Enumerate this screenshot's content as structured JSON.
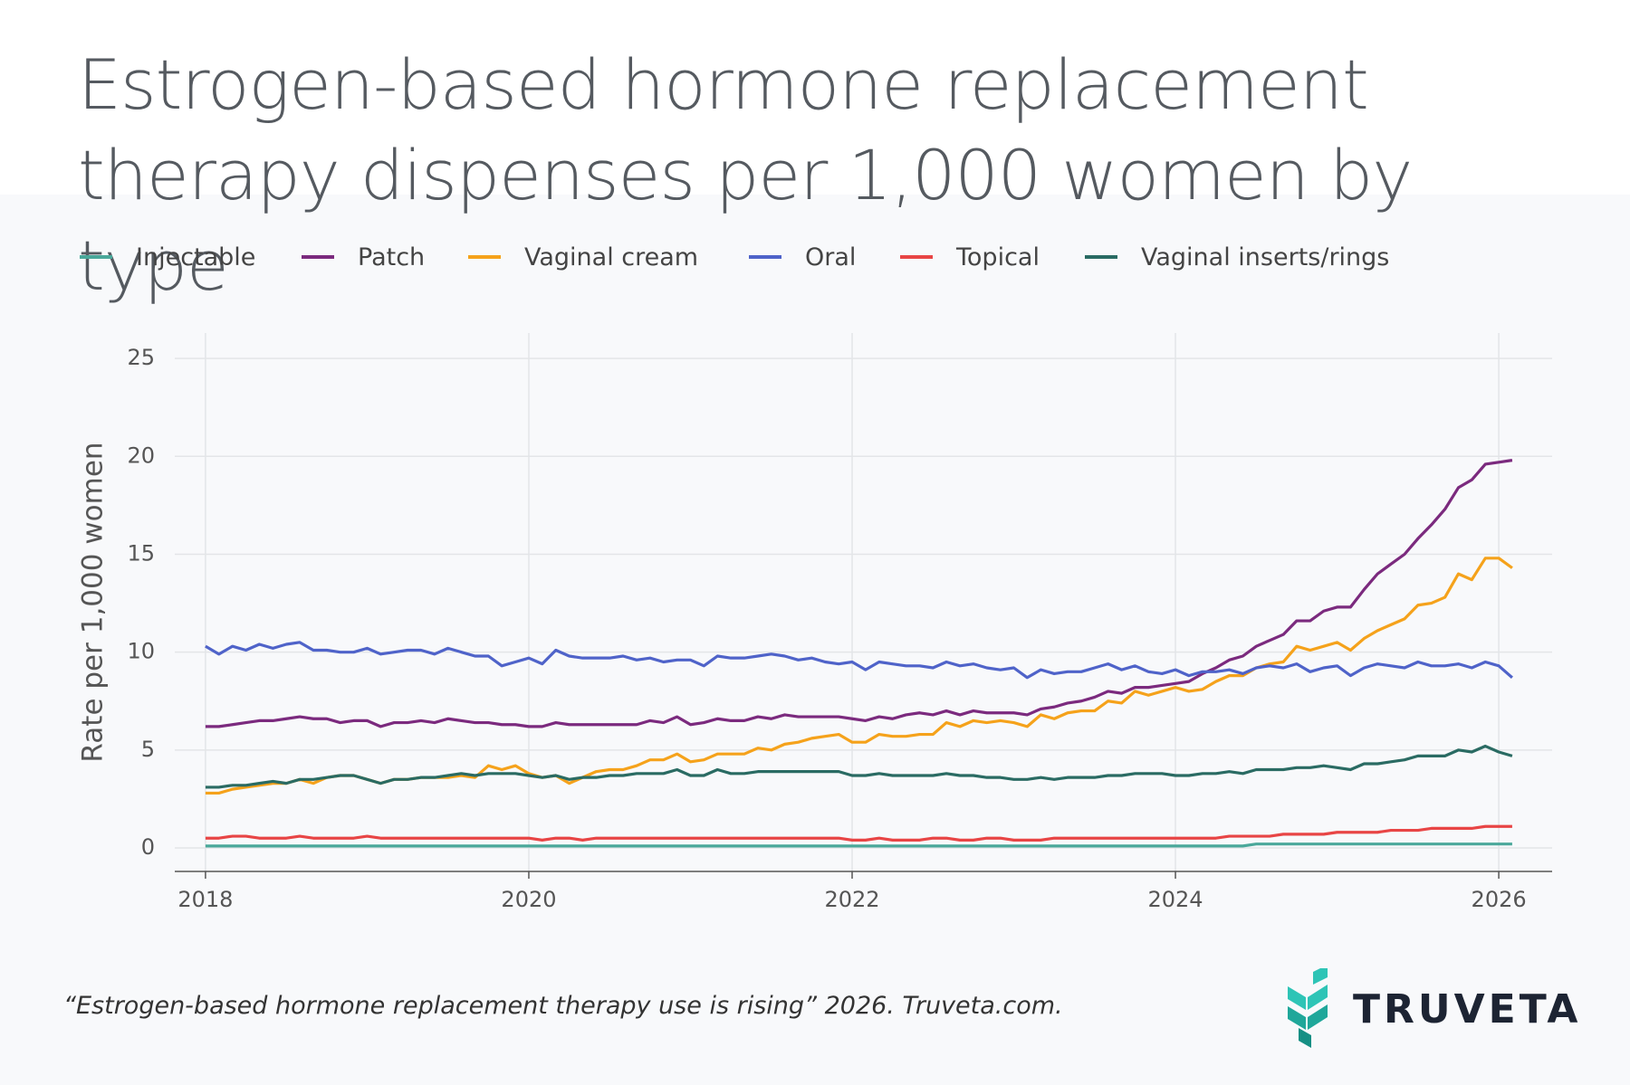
{
  "chart_data": {
    "type": "line",
    "title": "Estrogen-based hormone replacement therapy dispenses per 1,000 women by type",
    "y_label": "Rate per 1,000 women",
    "source": "“Estrogen-based hormone replacement therapy use is rising” 2026. Truveta.com.",
    "logo_text": "TRUVETA",
    "xlim": [
      2017.81,
      2026.33
    ],
    "xticks": [
      2018,
      2020,
      2022,
      2024,
      2026
    ],
    "ylim": [
      -1.2,
      26.3
    ],
    "yticks": [
      0,
      5,
      10,
      15,
      20,
      25
    ],
    "grid": true,
    "x": [
      2018,
      2018.083,
      2018.167,
      2018.25,
      2018.333,
      2018.417,
      2018.5,
      2018.583,
      2018.667,
      2018.75,
      2018.833,
      2018.917,
      2019,
      2019.083,
      2019.167,
      2019.25,
      2019.333,
      2019.417,
      2019.5,
      2019.583,
      2019.667,
      2019.75,
      2019.833,
      2019.917,
      2020,
      2020.083,
      2020.167,
      2020.25,
      2020.333,
      2020.417,
      2020.5,
      2020.583,
      2020.667,
      2020.75,
      2020.833,
      2020.917,
      2021,
      2021.083,
      2021.167,
      2021.25,
      2021.333,
      2021.417,
      2021.5,
      2021.583,
      2021.667,
      2021.75,
      2021.833,
      2021.917,
      2022,
      2022.083,
      2022.167,
      2022.25,
      2022.333,
      2022.417,
      2022.5,
      2022.583,
      2022.667,
      2022.75,
      2022.833,
      2022.917,
      2023,
      2023.083,
      2023.167,
      2023.25,
      2023.333,
      2023.417,
      2023.5,
      2023.583,
      2023.667,
      2023.75,
      2023.833,
      2023.917,
      2024,
      2024.083,
      2024.167,
      2024.25,
      2024.333,
      2024.417,
      2024.5,
      2024.583,
      2024.667,
      2024.75,
      2024.833,
      2024.917,
      2025,
      2025.083,
      2025.167,
      2025.25,
      2025.333,
      2025.417,
      2025.5,
      2025.583,
      2025.667,
      2025.75,
      2025.833,
      2025.917,
      2026,
      2026.083
    ],
    "series": [
      {
        "name": "Injectable",
        "color": "#4aa89a",
        "values": [
          0.1,
          0.1,
          0.1,
          0.1,
          0.1,
          0.1,
          0.1,
          0.1,
          0.1,
          0.1,
          0.1,
          0.1,
          0.1,
          0.1,
          0.1,
          0.1,
          0.1,
          0.1,
          0.1,
          0.1,
          0.1,
          0.1,
          0.1,
          0.1,
          0.1,
          0.1,
          0.1,
          0.1,
          0.1,
          0.1,
          0.1,
          0.1,
          0.1,
          0.1,
          0.1,
          0.1,
          0.1,
          0.1,
          0.1,
          0.1,
          0.1,
          0.1,
          0.1,
          0.1,
          0.1,
          0.1,
          0.1,
          0.1,
          0.1,
          0.1,
          0.1,
          0.1,
          0.1,
          0.1,
          0.1,
          0.1,
          0.1,
          0.1,
          0.1,
          0.1,
          0.1,
          0.1,
          0.1,
          0.1,
          0.1,
          0.1,
          0.1,
          0.1,
          0.1,
          0.1,
          0.1,
          0.1,
          0.1,
          0.1,
          0.1,
          0.1,
          0.1,
          0.1,
          0.2,
          0.2,
          0.2,
          0.2,
          0.2,
          0.2,
          0.2,
          0.2,
          0.2,
          0.2,
          0.2,
          0.2,
          0.2,
          0.2,
          0.2,
          0.2,
          0.2,
          0.2,
          0.2,
          0.2
        ]
      },
      {
        "name": "Patch",
        "color": "#7b2a7e",
        "values": [
          6.2,
          6.2,
          6.3,
          6.4,
          6.5,
          6.5,
          6.6,
          6.7,
          6.6,
          6.6,
          6.4,
          6.5,
          6.5,
          6.2,
          6.4,
          6.4,
          6.5,
          6.4,
          6.6,
          6.5,
          6.4,
          6.4,
          6.3,
          6.3,
          6.2,
          6.2,
          6.4,
          6.3,
          6.3,
          6.3,
          6.3,
          6.3,
          6.3,
          6.5,
          6.4,
          6.7,
          6.3,
          6.4,
          6.6,
          6.5,
          6.5,
          6.7,
          6.6,
          6.8,
          6.7,
          6.7,
          6.7,
          6.7,
          6.6,
          6.5,
          6.7,
          6.6,
          6.8,
          6.9,
          6.8,
          7.0,
          6.8,
          7.0,
          6.9,
          6.9,
          6.9,
          6.8,
          7.1,
          7.2,
          7.4,
          7.5,
          7.7,
          8.0,
          7.9,
          8.2,
          8.2,
          8.3,
          8.4,
          8.5,
          8.9,
          9.2,
          9.6,
          9.8,
          10.3,
          10.6,
          10.9,
          11.6,
          11.6,
          12.1,
          12.3,
          12.3,
          13.2,
          14.0,
          14.5,
          15.0,
          15.8,
          16.5,
          17.3,
          18.4,
          18.8,
          19.6,
          19.7,
          19.8
        ]
      },
      {
        "name": "Vaginal cream",
        "color": "#f5a21b",
        "values": [
          2.8,
          2.8,
          3.0,
          3.1,
          3.2,
          3.3,
          3.3,
          3.5,
          3.3,
          3.6,
          3.7,
          3.7,
          3.5,
          3.3,
          3.5,
          3.5,
          3.6,
          3.6,
          3.6,
          3.7,
          3.6,
          4.2,
          4.0,
          4.2,
          3.8,
          3.6,
          3.7,
          3.3,
          3.6,
          3.9,
          4.0,
          4.0,
          4.2,
          4.5,
          4.5,
          4.8,
          4.4,
          4.5,
          4.8,
          4.8,
          4.8,
          5.1,
          5.0,
          5.3,
          5.4,
          5.6,
          5.7,
          5.8,
          5.4,
          5.4,
          5.8,
          5.7,
          5.7,
          5.8,
          5.8,
          6.4,
          6.2,
          6.5,
          6.4,
          6.5,
          6.4,
          6.2,
          6.8,
          6.6,
          6.9,
          7.0,
          7.0,
          7.5,
          7.4,
          8.0,
          7.8,
          8.0,
          8.2,
          8.0,
          8.1,
          8.5,
          8.8,
          8.8,
          9.2,
          9.4,
          9.5,
          10.3,
          10.1,
          10.3,
          10.5,
          10.1,
          10.7,
          11.1,
          11.4,
          11.7,
          12.4,
          12.5,
          12.8,
          14.0,
          13.7,
          14.8,
          14.8,
          14.3
        ]
      },
      {
        "name": "Oral",
        "color": "#4f63c9",
        "values": [
          10.3,
          9.9,
          10.3,
          10.1,
          10.4,
          10.2,
          10.4,
          10.5,
          10.1,
          10.1,
          10.0,
          10.0,
          10.2,
          9.9,
          10.0,
          10.1,
          10.1,
          9.9,
          10.2,
          10.0,
          9.8,
          9.8,
          9.3,
          9.5,
          9.7,
          9.4,
          10.1,
          9.8,
          9.7,
          9.7,
          9.7,
          9.8,
          9.6,
          9.7,
          9.5,
          9.6,
          9.6,
          9.3,
          9.8,
          9.7,
          9.7,
          9.8,
          9.9,
          9.8,
          9.6,
          9.7,
          9.5,
          9.4,
          9.5,
          9.1,
          9.5,
          9.4,
          9.3,
          9.3,
          9.2,
          9.5,
          9.3,
          9.4,
          9.2,
          9.1,
          9.2,
          8.7,
          9.1,
          8.9,
          9.0,
          9.0,
          9.2,
          9.4,
          9.1,
          9.3,
          9.0,
          8.9,
          9.1,
          8.8,
          9.0,
          9.0,
          9.1,
          8.9,
          9.2,
          9.3,
          9.2,
          9.4,
          9.0,
          9.2,
          9.3,
          8.8,
          9.2,
          9.4,
          9.3,
          9.2,
          9.5,
          9.3,
          9.3,
          9.4,
          9.2,
          9.5,
          9.3,
          8.7
        ]
      },
      {
        "name": "Topical",
        "color": "#e84545",
        "values": [
          0.5,
          0.5,
          0.6,
          0.6,
          0.5,
          0.5,
          0.5,
          0.6,
          0.5,
          0.5,
          0.5,
          0.5,
          0.6,
          0.5,
          0.5,
          0.5,
          0.5,
          0.5,
          0.5,
          0.5,
          0.5,
          0.5,
          0.5,
          0.5,
          0.5,
          0.4,
          0.5,
          0.5,
          0.4,
          0.5,
          0.5,
          0.5,
          0.5,
          0.5,
          0.5,
          0.5,
          0.5,
          0.5,
          0.5,
          0.5,
          0.5,
          0.5,
          0.5,
          0.5,
          0.5,
          0.5,
          0.5,
          0.5,
          0.4,
          0.4,
          0.5,
          0.4,
          0.4,
          0.4,
          0.5,
          0.5,
          0.4,
          0.4,
          0.5,
          0.5,
          0.4,
          0.4,
          0.4,
          0.5,
          0.5,
          0.5,
          0.5,
          0.5,
          0.5,
          0.5,
          0.5,
          0.5,
          0.5,
          0.5,
          0.5,
          0.5,
          0.6,
          0.6,
          0.6,
          0.6,
          0.7,
          0.7,
          0.7,
          0.7,
          0.8,
          0.8,
          0.8,
          0.8,
          0.9,
          0.9,
          0.9,
          1.0,
          1.0,
          1.0,
          1.0,
          1.1,
          1.1,
          1.1
        ]
      },
      {
        "name": "Vaginal inserts/rings",
        "color": "#2a6b63",
        "values": [
          3.1,
          3.1,
          3.2,
          3.2,
          3.3,
          3.4,
          3.3,
          3.5,
          3.5,
          3.6,
          3.7,
          3.7,
          3.5,
          3.3,
          3.5,
          3.5,
          3.6,
          3.6,
          3.7,
          3.8,
          3.7,
          3.8,
          3.8,
          3.8,
          3.7,
          3.6,
          3.7,
          3.5,
          3.6,
          3.6,
          3.7,
          3.7,
          3.8,
          3.8,
          3.8,
          4.0,
          3.7,
          3.7,
          4.0,
          3.8,
          3.8,
          3.9,
          3.9,
          3.9,
          3.9,
          3.9,
          3.9,
          3.9,
          3.7,
          3.7,
          3.8,
          3.7,
          3.7,
          3.7,
          3.7,
          3.8,
          3.7,
          3.7,
          3.6,
          3.6,
          3.5,
          3.5,
          3.6,
          3.5,
          3.6,
          3.6,
          3.6,
          3.7,
          3.7,
          3.8,
          3.8,
          3.8,
          3.7,
          3.7,
          3.8,
          3.8,
          3.9,
          3.8,
          4.0,
          4.0,
          4.0,
          4.1,
          4.1,
          4.2,
          4.1,
          4.0,
          4.3,
          4.3,
          4.4,
          4.5,
          4.7,
          4.7,
          4.7,
          5.0,
          4.9,
          5.2,
          4.9,
          4.7
        ]
      }
    ]
  }
}
